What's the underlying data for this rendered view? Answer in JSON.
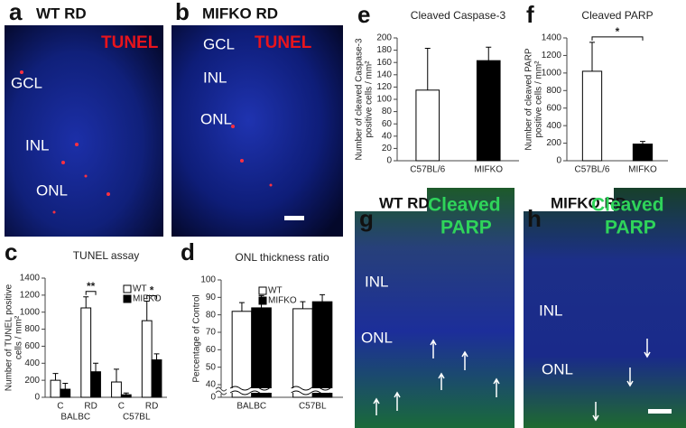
{
  "images": [
    {
      "letter": "a",
      "title": "WT RD",
      "stain": [
        "TUNEL"
      ],
      "labels": [
        "GCL",
        "INL",
        "ONL"
      ]
    },
    {
      "letter": "b",
      "title": "MIFKO RD",
      "stain": [
        "TUNEL"
      ],
      "labels": [
        "GCL",
        "INL",
        "ONL"
      ]
    },
    {
      "letter": "g",
      "title": "WT RD",
      "stain": [
        "Cleaved",
        "PARP"
      ],
      "labels": [
        "INL",
        "ONL"
      ]
    },
    {
      "letter": "h",
      "title": "MIFKO RD",
      "stain": [
        "Cleaved",
        "PARP"
      ],
      "labels": [
        "INL",
        "ONL"
      ]
    }
  ],
  "chart_data": [
    {
      "type": "bar",
      "panel_label": "c",
      "title": "TUNEL assay",
      "ylabel": [
        "Number of TUNEL positive",
        "cells / mm²"
      ],
      "categories": [
        "C",
        "RD",
        "C",
        "RD"
      ],
      "groups": [
        "BALBC",
        "C57BL"
      ],
      "series": [
        {
          "name": "WT",
          "color": "#ffffff",
          "values": [
            200,
            1050,
            180,
            900
          ],
          "errors": [
            80,
            130,
            150,
            230
          ]
        },
        {
          "name": "MIFKO",
          "color": "#000000",
          "values": [
            95,
            300,
            30,
            440
          ],
          "errors": [
            70,
            100,
            20,
            70
          ]
        }
      ],
      "significance": [
        null,
        "**",
        null,
        "*"
      ],
      "legend": "top-right",
      "ylim": [
        0,
        1400
      ],
      "yticks": [
        0,
        200,
        400,
        600,
        800,
        1000,
        1200,
        1400
      ]
    },
    {
      "type": "bar",
      "panel_label": "d",
      "title": "ONL thickness ratio",
      "ylabel": [
        "Percentage of Control"
      ],
      "categories": [
        "BALBC",
        "C57BL"
      ],
      "series": [
        {
          "name": "WT",
          "color": "#ffffff",
          "values": [
            82,
            83.5
          ],
          "errors": [
            5,
            4
          ]
        },
        {
          "name": "MIFKO",
          "color": "#000000",
          "values": [
            84,
            87.5
          ],
          "errors": [
            7,
            4
          ]
        }
      ],
      "legend": "top-left",
      "axis_break": [
        0,
        40
      ],
      "ylim": [
        0,
        100
      ],
      "yticks": [
        0,
        40,
        50,
        60,
        70,
        80,
        90,
        100
      ]
    },
    {
      "type": "bar",
      "panel_label": "e",
      "title": "Cleaved Caspase-3",
      "ylabel": [
        "Number of cleaved Caspase-3",
        "positive cells / mm²"
      ],
      "categories": [
        "C57BL/6",
        "MIFKO"
      ],
      "values": [
        115,
        163
      ],
      "errors": [
        68,
        22
      ],
      "colors": [
        "#ffffff",
        "#000000"
      ],
      "ylim": [
        0,
        200
      ],
      "yticks": [
        0,
        20,
        40,
        60,
        80,
        100,
        120,
        140,
        160,
        180,
        200
      ]
    },
    {
      "type": "bar",
      "panel_label": "f",
      "title": "Cleaved PARP",
      "ylabel": [
        "Number of cleaved PARP",
        "positive cells / mm²"
      ],
      "categories": [
        "C57BL/6",
        "MIFKO"
      ],
      "values": [
        1020,
        190
      ],
      "errors": [
        330,
        30
      ],
      "colors": [
        "#ffffff",
        "#000000"
      ],
      "significance": "*",
      "ylim": [
        0,
        1400
      ],
      "yticks": [
        0,
        200,
        400,
        600,
        800,
        1000,
        1200,
        1400
      ]
    }
  ]
}
